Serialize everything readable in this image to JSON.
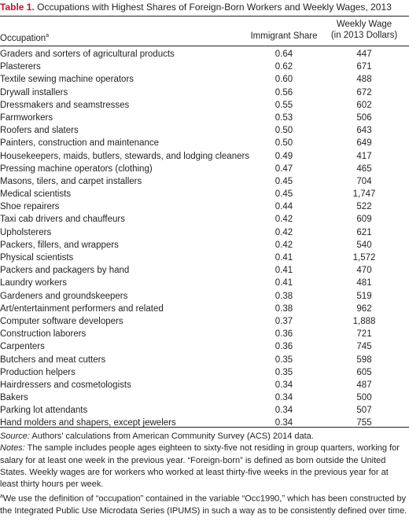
{
  "title": {
    "label": "Table 1.",
    "text": " Occupations with Highest Shares of Foreign-Born Workers and Weekly Wages, 2013"
  },
  "headers": {
    "occupation": "Occupation",
    "occupation_note": "a",
    "share": "Immigrant Share",
    "wage_line1": "Weekly Wage",
    "wage_line2": "(in 2013 Dollars)"
  },
  "rows": [
    {
      "occupation": "Graders and sorters of agricultural products",
      "share": "0.64",
      "wage": "447"
    },
    {
      "occupation": "Plasterers",
      "share": "0.62",
      "wage": "671"
    },
    {
      "occupation": "Textile sewing machine operators",
      "share": "0.60",
      "wage": "488"
    },
    {
      "occupation": "Drywall installers",
      "share": "0.56",
      "wage": "672"
    },
    {
      "occupation": "Dressmakers and seamstresses",
      "share": "0.55",
      "wage": "602"
    },
    {
      "occupation": "Farmworkers",
      "share": "0.53",
      "wage": "506"
    },
    {
      "occupation": "Roofers and slaters",
      "share": "0.50",
      "wage": "643"
    },
    {
      "occupation": "Painters, construction and maintenance",
      "share": "0.50",
      "wage": "649"
    },
    {
      "occupation": "Housekeepers, maids, butlers, stewards, and lodging cleaners",
      "share": "0.49",
      "wage": "417"
    },
    {
      "occupation": "Pressing machine operators (clothing)",
      "share": "0.47",
      "wage": "465"
    },
    {
      "occupation": "Masons, tilers, and carpet installers",
      "share": "0.45",
      "wage": "704"
    },
    {
      "occupation": "Medical scientists",
      "share": "0.45",
      "wage": "1,747"
    },
    {
      "occupation": "Shoe repairers",
      "share": "0.44",
      "wage": "522"
    },
    {
      "occupation": "Taxi cab drivers and chauffeurs",
      "share": "0.42",
      "wage": "609"
    },
    {
      "occupation": "Upholsterers",
      "share": "0.42",
      "wage": "621"
    },
    {
      "occupation": "Packers, fillers, and wrappers",
      "share": "0.42",
      "wage": "540"
    },
    {
      "occupation": "Physical scientists",
      "share": "0.41",
      "wage": "1,572"
    },
    {
      "occupation": "Packers and packagers by hand",
      "share": "0.41",
      "wage": "470"
    },
    {
      "occupation": "Laundry workers",
      "share": "0.41",
      "wage": "481"
    },
    {
      "occupation": "Gardeners and groundskeepers",
      "share": "0.38",
      "wage": "519"
    },
    {
      "occupation": "Art/entertainment performers and related",
      "share": "0.38",
      "wage": "962"
    },
    {
      "occupation": "Computer software developers",
      "share": "0.37",
      "wage": "1,888"
    },
    {
      "occupation": "Construction laborers",
      "share": "0.36",
      "wage": "721"
    },
    {
      "occupation": "Carpenters",
      "share": "0.36",
      "wage": "745"
    },
    {
      "occupation": "Butchers and meat cutters",
      "share": "0.35",
      "wage": "598"
    },
    {
      "occupation": "Production helpers",
      "share": "0.35",
      "wage": "605"
    },
    {
      "occupation": "Hairdressers and cosmetologists",
      "share": "0.34",
      "wage": "487"
    },
    {
      "occupation": "Bakers",
      "share": "0.34",
      "wage": "500"
    },
    {
      "occupation": "Parking lot attendants",
      "share": "0.34",
      "wage": "507"
    },
    {
      "occupation": "Hand molders and shapers, except jewelers",
      "share": "0.34",
      "wage": "755"
    }
  ],
  "notes": {
    "source_label": "Source:",
    "source_text": " Authors’ calculations from American Community Survey (ACS) 2014 data.",
    "notes_label": "Notes:",
    "notes_text": " The sample includes people ages eighteen to sixty-five not residing in group quarters, working for salary for at least one week in the previous year. “Foreign-born” is defined as born outside the United States. Weekly wages are for workers who worked at least thirty-five weeks in the previous year for at least thirty hours per week.",
    "footnote_marker": "a",
    "footnote_text": "We use the definition of “occupation” contained in the variable “Occ1990,” which has been constructed by the Integrated Public Use Microdata Series (IPUMS) in such a way as to be consistently defined over time."
  }
}
